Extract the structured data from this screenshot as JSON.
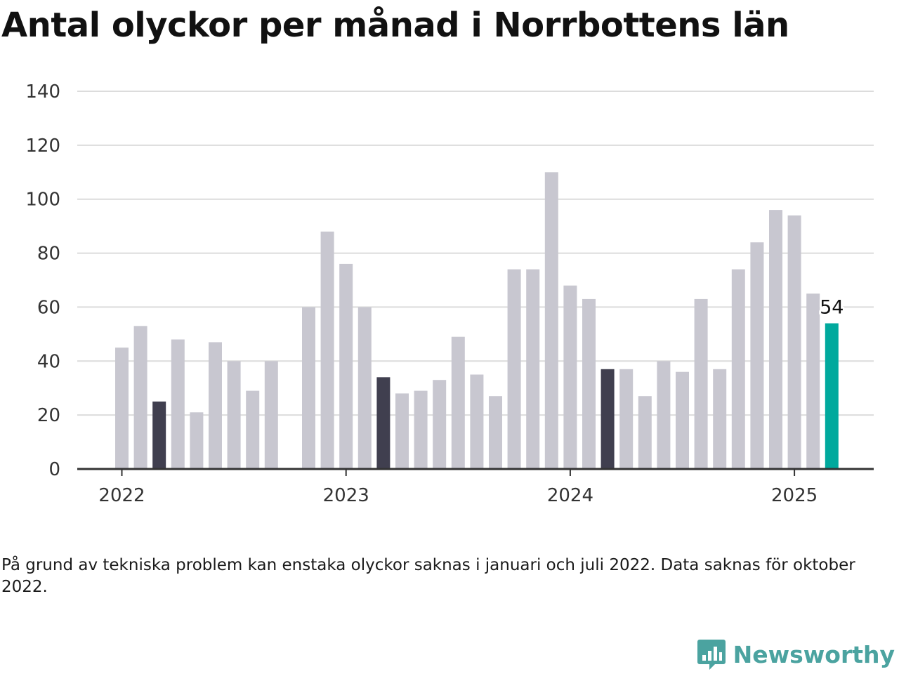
{
  "header": {
    "title": "Antal olyckor per månad i Norrbottens län"
  },
  "note": {
    "text": "På grund av tekniska problem kan enstaka olyckor saknas i januari och juli 2022. Data saknas för oktober 2022."
  },
  "brand": {
    "name": "Newsworthy",
    "icon": "bar-chart-speech-bubble-icon",
    "color": "#4ba3a0"
  },
  "chart_data": {
    "type": "bar",
    "title": "Antal olyckor per månad i Norrbottens län",
    "xlabel": "",
    "ylabel": "",
    "ylim": [
      0,
      140
    ],
    "yticks": [
      0,
      20,
      40,
      60,
      80,
      100,
      120,
      140
    ],
    "grid": true,
    "x_tick_labels": [
      {
        "label": "2022",
        "at_index": 0
      },
      {
        "label": "2023",
        "at_index": 12
      },
      {
        "label": "2024",
        "at_index": 24
      },
      {
        "label": "2025",
        "at_index": 36
      }
    ],
    "categories": [
      "2022-01",
      "2022-02",
      "2022-03",
      "2022-04",
      "2022-05",
      "2022-06",
      "2022-07",
      "2022-08",
      "2022-09",
      "2022-10",
      "2022-11",
      "2022-12",
      "2023-01",
      "2023-02",
      "2023-03",
      "2023-04",
      "2023-05",
      "2023-06",
      "2023-07",
      "2023-08",
      "2023-09",
      "2023-10",
      "2023-11",
      "2023-12",
      "2024-01",
      "2024-02",
      "2024-03",
      "2024-04",
      "2024-05",
      "2024-06",
      "2024-07",
      "2024-08",
      "2024-09",
      "2024-10",
      "2024-11",
      "2024-12",
      "2025-01",
      "2025-02",
      "2025-03"
    ],
    "values": [
      45,
      53,
      25,
      48,
      21,
      47,
      40,
      29,
      40,
      null,
      60,
      88,
      76,
      60,
      34,
      28,
      29,
      33,
      49,
      35,
      27,
      74,
      74,
      110,
      68,
      63,
      37,
      37,
      27,
      40,
      36,
      63,
      37,
      74,
      84,
      96,
      94,
      65,
      54
    ],
    "highlighted_indices": [
      2,
      14,
      26
    ],
    "latest_index": 38,
    "latest_label": "54",
    "colors": {
      "bar": "#c8c7d0",
      "highlight": "#403f4f",
      "latest": "#00a99d",
      "grid": "#dcdcdc",
      "axis": "#333333"
    }
  }
}
